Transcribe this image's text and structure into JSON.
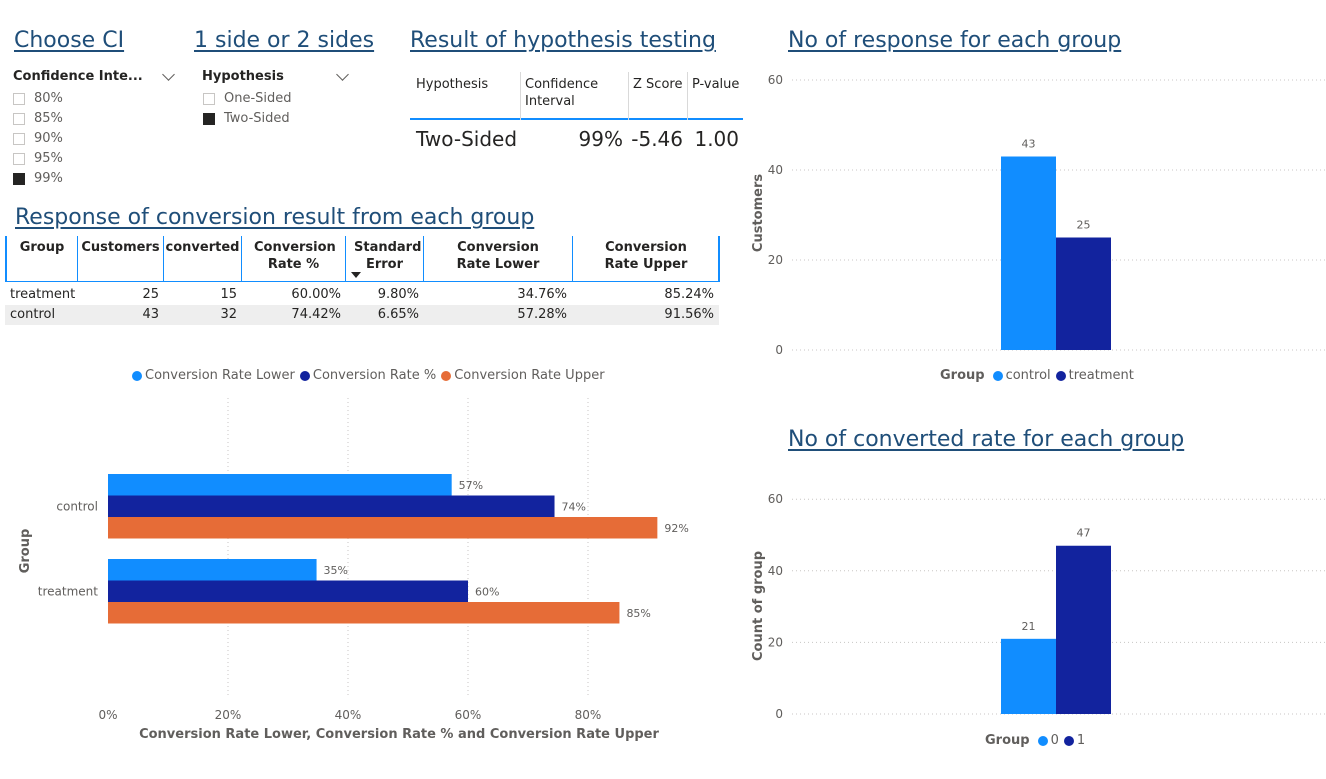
{
  "titles": {
    "choose_ci": "Choose CI",
    "sides": "1 side or 2 sides",
    "result": "Result of hypothesis testing",
    "response": "No of response for each group",
    "conversion_table": "Response of conversion result from each group",
    "converted_rate": "No of converted rate for each group"
  },
  "ci_slicer": {
    "header": "Confidence Inte...",
    "options": [
      {
        "label": "80%",
        "selected": false
      },
      {
        "label": "85%",
        "selected": false
      },
      {
        "label": "90%",
        "selected": false
      },
      {
        "label": "95%",
        "selected": false
      },
      {
        "label": "99%",
        "selected": true
      }
    ]
  },
  "hyp_slicer": {
    "header": "Hypothesis",
    "options": [
      {
        "label": "One-Sided",
        "selected": false
      },
      {
        "label": "Two-Sided",
        "selected": true
      }
    ]
  },
  "result_table": {
    "headers": [
      "Hypothesis",
      "Confidence Interval",
      "Z Score",
      "P-value"
    ],
    "row": [
      "Two-Sided",
      "99%",
      "-5.46",
      "1.00"
    ]
  },
  "conversion_table": {
    "headers": [
      "Group",
      "Customers",
      "converted",
      "Conversion Rate %",
      "Standard Error",
      "Conversion Rate Lower",
      "Conversion Rate Upper"
    ],
    "rows": [
      [
        "treatment",
        "25",
        "15",
        "60.00%",
        "9.80%",
        "34.76%",
        "85.24%"
      ],
      [
        "control",
        "43",
        "32",
        "74.42%",
        "6.65%",
        "57.28%",
        "91.56%"
      ]
    ]
  },
  "colors": {
    "lower": "#118dff",
    "rate": "#12239e",
    "upper": "#e66c37",
    "control": "#118dff",
    "treatment": "#12239e"
  },
  "chart_data": [
    {
      "type": "bar",
      "orientation": "horizontal",
      "categories": [
        "control",
        "treatment"
      ],
      "series": [
        {
          "name": "Conversion Rate Lower",
          "values": [
            57.28,
            34.76
          ],
          "labels": [
            "57%",
            "35%"
          ]
        },
        {
          "name": "Conversion Rate %",
          "values": [
            74.42,
            60.0
          ],
          "labels": [
            "74%",
            "60%"
          ]
        },
        {
          "name": "Conversion Rate Upper",
          "values": [
            91.56,
            85.24
          ],
          "labels": [
            "92%",
            "85%"
          ]
        }
      ],
      "xlabel": "Conversion Rate Lower, Conversion Rate % and Conversion Rate Upper",
      "ylabel": "Group",
      "xticks": [
        "0%",
        "20%",
        "40%",
        "60%",
        "80%"
      ],
      "xlim": [
        0,
        100
      ],
      "legend": "top-center",
      "grid": true
    },
    {
      "type": "bar",
      "title": "No of response for each group",
      "categories": [
        "control",
        "treatment"
      ],
      "values": [
        43,
        25
      ],
      "labels": [
        "43",
        "25"
      ],
      "ylabel": "Customers",
      "yticks": [
        "0",
        "20",
        "40",
        "60"
      ],
      "ylim": [
        0,
        60
      ],
      "legend_title": "Group",
      "legend_items": [
        "control",
        "treatment"
      ],
      "legend": "bottom-center",
      "grid": true
    },
    {
      "type": "bar",
      "title": "No of converted rate for each group",
      "categories": [
        "0",
        "1"
      ],
      "values": [
        21,
        47
      ],
      "labels": [
        "21",
        "47"
      ],
      "ylabel": "Count of group",
      "yticks": [
        "0",
        "20",
        "40",
        "60"
      ],
      "ylim": [
        0,
        60
      ],
      "legend_title": "Group",
      "legend_items": [
        "0",
        "1"
      ],
      "legend": "bottom-center",
      "grid": true
    }
  ]
}
